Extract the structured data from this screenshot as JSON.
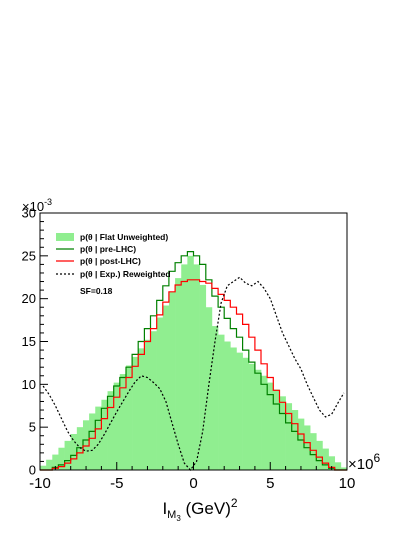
{
  "chart_data": {
    "type": "line",
    "xlabel_main": "I",
    "xlabel_sub": "M",
    "xlabel_subsub": "3",
    "xlabel_rest": " (GeV)",
    "xlabel_exp": "2",
    "xlim": [
      -10,
      10
    ],
    "ylim": [
      0,
      0.03
    ],
    "x_multiplier": {
      "base": "×10",
      "exp": "6"
    },
    "y_multiplier": {
      "base": "×10",
      "exp": "-3"
    },
    "x_ticks": [
      -10,
      -5,
      0,
      5,
      10
    ],
    "x_tick_labels": [
      "-10",
      "-5",
      "0",
      "5",
      "10"
    ],
    "y_ticks": [
      0,
      5,
      10,
      15,
      20,
      25,
      30
    ],
    "y_tick_labels": [
      "0",
      "5",
      "10",
      "15",
      "20",
      "25",
      "30"
    ],
    "grid": false,
    "legend_position": "top-left",
    "annotation": "SF=0.18",
    "series": [
      {
        "name": "p(θ | Flat Unweighted)",
        "style": "filled-histogram",
        "color": "#90ee90",
        "x": [
          -9.8,
          -9.4,
          -9.0,
          -8.6,
          -8.2,
          -7.8,
          -7.4,
          -7.0,
          -6.6,
          -6.2,
          -5.8,
          -5.4,
          -5.0,
          -4.6,
          -4.2,
          -3.8,
          -3.4,
          -3.0,
          -2.6,
          -2.2,
          -1.8,
          -1.4,
          -1.0,
          -0.6,
          -0.2,
          0.2,
          0.6,
          1.0,
          1.4,
          1.8,
          2.2,
          2.6,
          3.0,
          3.4,
          3.8,
          4.2,
          4.6,
          5.0,
          5.4,
          5.8,
          6.2,
          6.6,
          7.0,
          7.4,
          7.8,
          8.2,
          8.6,
          9.0,
          9.4,
          9.8
        ],
        "y": [
          0.0005,
          0.0012,
          0.0018,
          0.0026,
          0.0034,
          0.0042,
          0.005,
          0.0058,
          0.0066,
          0.0074,
          0.0082,
          0.0092,
          0.0102,
          0.0112,
          0.0122,
          0.0132,
          0.0142,
          0.0152,
          0.0162,
          0.0178,
          0.0192,
          0.0208,
          0.0224,
          0.024,
          0.025,
          0.024,
          0.0216,
          0.019,
          0.0168,
          0.0158,
          0.015,
          0.0143,
          0.0137,
          0.0131,
          0.0124,
          0.0117,
          0.011,
          0.0102,
          0.0094,
          0.0086,
          0.0078,
          0.007,
          0.006,
          0.0052,
          0.0043,
          0.0034,
          0.0025,
          0.0016,
          0.0009,
          0.0003
        ]
      },
      {
        "name": "p(θ | pre-LHC)",
        "style": "step-line",
        "color": "#008000",
        "x": [
          -9.8,
          -9.4,
          -9.0,
          -8.6,
          -8.2,
          -7.8,
          -7.4,
          -7.0,
          -6.6,
          -6.2,
          -5.8,
          -5.4,
          -5.0,
          -4.6,
          -4.2,
          -3.8,
          -3.4,
          -3.0,
          -2.6,
          -2.2,
          -1.8,
          -1.4,
          -1.0,
          -0.6,
          -0.2,
          0.2,
          0.6,
          1.0,
          1.4,
          1.8,
          2.2,
          2.6,
          3.0,
          3.4,
          3.8,
          4.2,
          4.6,
          5.0,
          5.4,
          5.8,
          6.2,
          6.6,
          7.0,
          7.4,
          7.8,
          8.2,
          8.6,
          9.0,
          9.4,
          9.8
        ],
        "y": [
          0.0,
          0.0,
          0.0003,
          0.0006,
          0.0011,
          0.0017,
          0.0026,
          0.0035,
          0.0045,
          0.0058,
          0.0072,
          0.0086,
          0.0098,
          0.0108,
          0.012,
          0.0135,
          0.015,
          0.0165,
          0.018,
          0.0198,
          0.0215,
          0.0232,
          0.0242,
          0.025,
          0.0255,
          0.025,
          0.024,
          0.0222,
          0.0203,
          0.019,
          0.0177,
          0.0165,
          0.0155,
          0.014,
          0.0126,
          0.0113,
          0.01,
          0.0088,
          0.0077,
          0.0066,
          0.0055,
          0.0045,
          0.0035,
          0.0026,
          0.0018,
          0.0011,
          0.0006,
          0.0002,
          0.0,
          0.0
        ]
      },
      {
        "name": "p(θ | post-LHC)",
        "style": "step-line",
        "color": "#ff0000",
        "x": [
          -9.8,
          -9.4,
          -9.0,
          -8.6,
          -8.2,
          -7.8,
          -7.4,
          -7.0,
          -6.6,
          -6.2,
          -5.8,
          -5.4,
          -5.0,
          -4.6,
          -4.2,
          -3.8,
          -3.4,
          -3.0,
          -2.6,
          -2.2,
          -1.8,
          -1.4,
          -1.0,
          -0.6,
          -0.2,
          0.2,
          0.6,
          1.0,
          1.4,
          1.8,
          2.2,
          2.6,
          3.0,
          3.4,
          3.8,
          4.2,
          4.6,
          5.0,
          5.4,
          5.8,
          6.2,
          6.6,
          7.0,
          7.4,
          7.8,
          8.2,
          8.6,
          9.0,
          9.4,
          9.8
        ],
        "y": [
          0.0,
          0.0,
          0.0002,
          0.0004,
          0.0008,
          0.0013,
          0.002,
          0.0028,
          0.0037,
          0.0048,
          0.006,
          0.0073,
          0.0085,
          0.0096,
          0.0108,
          0.0121,
          0.0135,
          0.015,
          0.0165,
          0.0181,
          0.0196,
          0.0208,
          0.0216,
          0.022,
          0.0222,
          0.0222,
          0.022,
          0.0218,
          0.0212,
          0.0205,
          0.0198,
          0.019,
          0.0182,
          0.017,
          0.0155,
          0.014,
          0.0124,
          0.0108,
          0.0093,
          0.0079,
          0.0066,
          0.0054,
          0.0042,
          0.0032,
          0.0023,
          0.0015,
          0.0008,
          0.0003,
          0.0,
          0.0
        ]
      },
      {
        "name": "p(θ | Exp.) Reweighted",
        "style": "dashed-line",
        "color": "#000000",
        "x": [
          -9.8,
          -9.4,
          -9.0,
          -8.6,
          -8.2,
          -7.8,
          -7.4,
          -7.0,
          -6.6,
          -6.2,
          -5.8,
          -5.4,
          -5.0,
          -4.6,
          -4.2,
          -3.8,
          -3.4,
          -3.0,
          -2.6,
          -2.2,
          -1.8,
          -1.4,
          -1.0,
          -0.6,
          -0.2,
          0.2,
          0.6,
          1.0,
          1.4,
          1.8,
          2.2,
          2.6,
          3.0,
          3.4,
          3.8,
          4.2,
          4.6,
          5.0,
          5.4,
          5.8,
          6.2,
          6.6,
          7.0,
          7.4,
          7.8,
          8.2,
          8.6,
          9.0,
          9.4,
          9.8
        ],
        "y": [
          0.0098,
          0.0088,
          0.0075,
          0.006,
          0.0045,
          0.0034,
          0.0026,
          0.0022,
          0.0023,
          0.003,
          0.0042,
          0.0055,
          0.0068,
          0.008,
          0.0092,
          0.0103,
          0.011,
          0.0108,
          0.0102,
          0.0095,
          0.008,
          0.0055,
          0.003,
          0.0008,
          0.0,
          0.001,
          0.0045,
          0.01,
          0.015,
          0.0195,
          0.0215,
          0.022,
          0.0225,
          0.0218,
          0.0215,
          0.022,
          0.0212,
          0.02,
          0.018,
          0.016,
          0.0145,
          0.013,
          0.0118,
          0.01,
          0.0085,
          0.007,
          0.0062,
          0.0065,
          0.0078,
          0.009
        ]
      }
    ]
  }
}
